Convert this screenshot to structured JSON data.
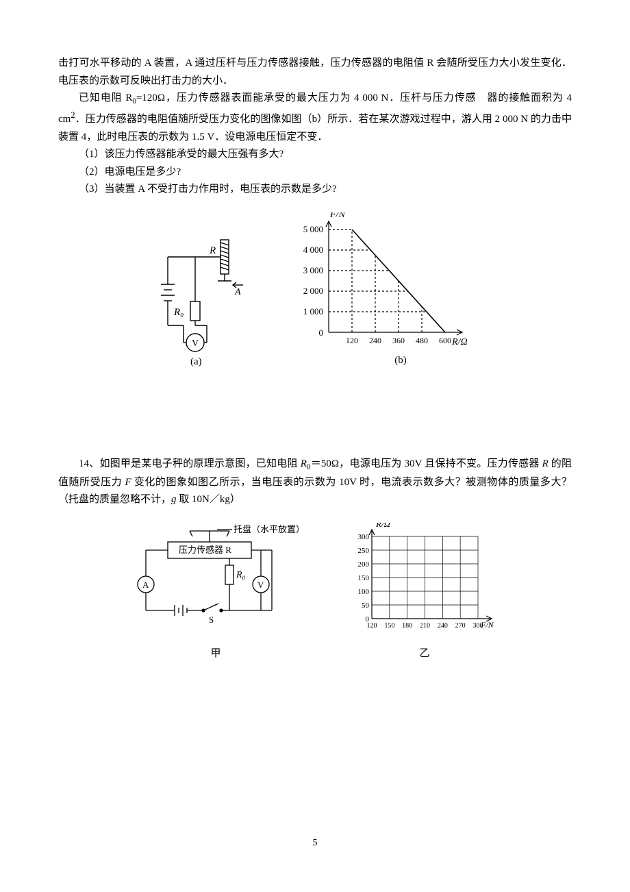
{
  "p13": {
    "line1": "击打可水平移动的 A 装置，A 通过压杆与压力传感器接触，压力传感器的电阻值 R 会随所受压力大小发生变化．电压表的示数可反映出打击力的大小．",
    "line2_a": "已知电阻 R",
    "line2_sub": "0",
    "line2_b": "=120Ω，压力传感器表面能承受的最大压力为 4 000 N．压杆与压力传感　器的接触面积为 4　cm",
    "line2_sup": "2",
    "line2_c": "．压力传感器的电阻值随所受压力变化的图像如图（b）所示．若在某次游戏过程中，游人用 2 000 N 的力击中装置 4，此时电压表的示数为 1.5 V．设电源电压恒定不变．",
    "q1": "（1）该压力传感器能承受的最大压强有多大?",
    "q2": "（2）电源电压是多少?",
    "q3": "（3）当装置 A 不受打击力作用时，电压表的示数是多少?"
  },
  "p14": {
    "line1_a": "14、如图甲是某电子秤的原理示意图，已知电阻 ",
    "line1_b": "＝50Ω，电源电压为 30V 且保持不变。压力传感器 ",
    "line1_c": " 的阻值随所受压力 ",
    "line1_d": " 变化的图象如图乙所示，当电压表的示数为 10V 时，电流表示数多大？被测物体的质量多大？（托盘的质量忽略不计，",
    "line1_e": " 取 10N／kg）"
  },
  "fig_a": {
    "label_R": "R",
    "label_A": "A",
    "label_R0": "R₀",
    "label_V": "V",
    "caption": "(a)"
  },
  "fig_b": {
    "y_label": "F/N",
    "x_label": "R/Ω",
    "y_ticks": [
      "0",
      "1 000",
      "2 000",
      "3 000",
      "4 000",
      "5 000"
    ],
    "y_values": [
      0,
      1000,
      2000,
      3000,
      4000,
      5000
    ],
    "x_ticks": [
      "120",
      "240",
      "360",
      "480",
      "600"
    ],
    "x_values": [
      120,
      240,
      360,
      480,
      600
    ],
    "line_points": [
      [
        120,
        5000
      ],
      [
        600,
        0
      ]
    ],
    "axis_color": "#000000",
    "grid_dash": "3,3",
    "caption": "(b)"
  },
  "fig_jia": {
    "tray_label": "托盘（水平放置）",
    "sensor_label": "压力传感器 R",
    "R0_label": "R₀",
    "A_label": "A",
    "V_label": "V",
    "S_label": "S",
    "caption": "甲"
  },
  "fig_yi": {
    "y_label": "R/Ω",
    "x_label": "F/N",
    "y_ticks": [
      "0",
      "50",
      "100",
      "150",
      "200",
      "250",
      "300"
    ],
    "y_values": [
      0,
      50,
      100,
      150,
      200,
      250,
      300
    ],
    "x_ticks": [
      "120",
      "150",
      "180",
      "210",
      "240",
      "270",
      "300"
    ],
    "x_values": [
      120,
      150,
      180,
      210,
      240,
      270,
      300
    ],
    "axis_color": "#000000",
    "caption": "乙"
  },
  "page_number": "5"
}
